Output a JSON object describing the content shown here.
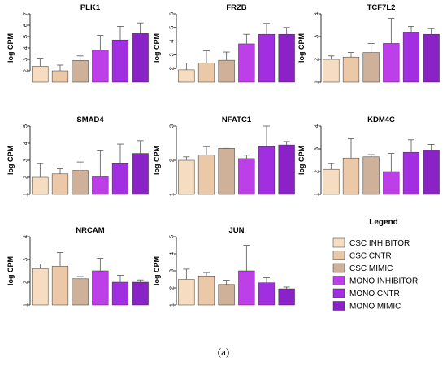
{
  "figure_label": "(a)",
  "legend": {
    "title": "Legend",
    "entries": [
      "CSC INHIBITOR",
      "CSC CNTR",
      "CSC MIMIC",
      "MONO INHIBITOR",
      "MONO CNTR",
      "MONO MIMIC"
    ]
  },
  "colors": {
    "CSC INHIBITOR": "#f6dcc0",
    "CSC CNTR": "#ebc9a8",
    "CSC MIMIC": "#cfb098",
    "MONO INHIBITOR": "#bd3fe8",
    "MONO CNTR": "#a12ee0",
    "MONO MIMIC": "#8a22c8"
  },
  "chart_data": [
    {
      "type": "bar",
      "title": "PLK1",
      "ylabel": "log CPM",
      "categories": [
        "CSC INHIBITOR",
        "CSC CNTR",
        "CSC MIMIC",
        "MONO INHIBITOR",
        "MONO CNTR",
        "MONO MIMIC"
      ],
      "values": [
        2.4,
        2.0,
        2.9,
        3.8,
        4.7,
        5.3
      ],
      "error_upper": [
        3.1,
        2.5,
        3.3,
        5.1,
        5.9,
        6.2
      ],
      "yticks": [
        2,
        3,
        4,
        5,
        6,
        7
      ],
      "ylim": [
        1,
        7
      ]
    },
    {
      "type": "bar",
      "title": "FRZB",
      "ylabel": "log CPM",
      "categories": [
        "CSC INHIBITOR",
        "CSC CNTR",
        "CSC MIMIC",
        "MONO INHIBITOR",
        "MONO CNTR",
        "MONO MIMIC"
      ],
      "values": [
        1.9,
        2.4,
        2.6,
        3.8,
        4.5,
        4.5
      ],
      "error_upper": [
        2.4,
        3.3,
        3.2,
        4.5,
        5.3,
        5.0
      ],
      "yticks": [
        2,
        3,
        4,
        5,
        6
      ],
      "ylim": [
        1,
        6
      ]
    },
    {
      "type": "bar",
      "title": "TCF7L2",
      "ylabel": "log CPM",
      "categories": [
        "CSC INHIBITOR",
        "CSC CNTR",
        "CSC MIMIC",
        "MONO INHIBITOR",
        "MONO CNTR",
        "MONO MIMIC"
      ],
      "values": [
        2.0,
        2.1,
        2.3,
        2.7,
        3.2,
        3.1
      ],
      "error_upper": [
        2.15,
        2.3,
        2.7,
        3.8,
        3.45,
        3.35
      ],
      "yticks": [
        1,
        2,
        3,
        4
      ],
      "ylim": [
        1,
        4
      ]
    },
    {
      "type": "bar",
      "title": "SMAD4",
      "ylabel": "log CPM",
      "categories": [
        "CSC INHIBITOR",
        "CSC CNTR",
        "CSC MIMIC",
        "MONO INHIBITOR",
        "MONO CNTR",
        "MONO MIMIC"
      ],
      "values": [
        2.0,
        2.2,
        2.4,
        2.05,
        2.8,
        3.4
      ],
      "error_upper": [
        2.8,
        2.5,
        2.9,
        3.55,
        3.95,
        4.15
      ],
      "yticks": [
        1,
        2,
        3,
        4,
        5
      ],
      "ylim": [
        1,
        5
      ]
    },
    {
      "type": "bar",
      "title": "NFATC1",
      "ylabel": "log CPM",
      "categories": [
        "CSC INHIBITOR",
        "CSC CNTR",
        "CSC MIMIC",
        "MONO INHIBITOR",
        "MONO CNTR",
        "MONO MIMIC"
      ],
      "values": [
        2.0,
        2.15,
        2.35,
        2.05,
        2.4,
        2.45
      ],
      "error_upper": [
        2.1,
        2.4,
        2.35,
        2.15,
        3.0,
        2.55
      ],
      "yticks": [
        1,
        2,
        3
      ],
      "ylim": [
        1,
        3
      ]
    },
    {
      "type": "bar",
      "title": "KDM4C",
      "ylabel": "log CPM",
      "categories": [
        "CSC INHIBITOR",
        "CSC CNTR",
        "CSC MIMIC",
        "MONO INHIBITOR",
        "MONO CNTR",
        "MONO MIMIC"
      ],
      "values": [
        2.1,
        2.6,
        2.65,
        2.0,
        2.85,
        2.95
      ],
      "error_upper": [
        2.35,
        3.45,
        2.75,
        2.8,
        3.4,
        3.2
      ],
      "yticks": [
        1,
        2,
        3,
        4
      ],
      "ylim": [
        1,
        4
      ]
    },
    {
      "type": "bar",
      "title": "NRCAM",
      "ylabel": "log CPM",
      "categories": [
        "CSC INHIBITOR",
        "CSC CNTR",
        "CSC MIMIC",
        "MONO INHIBITOR",
        "MONO CNTR",
        "MONO MIMIC"
      ],
      "values": [
        2.6,
        2.7,
        2.15,
        2.5,
        2.0,
        2.0
      ],
      "error_upper": [
        2.8,
        3.3,
        2.25,
        3.05,
        2.3,
        2.1
      ],
      "yticks": [
        1,
        2,
        3,
        4
      ],
      "ylim": [
        1,
        4
      ]
    },
    {
      "type": "bar",
      "title": "JUN",
      "ylabel": "log CPM",
      "categories": [
        "CSC INHIBITOR",
        "CSC CNTR",
        "CSC MIMIC",
        "MONO INHIBITOR",
        "MONO CNTR",
        "MONO MIMIC"
      ],
      "values": [
        2.5,
        2.7,
        2.2,
        3.0,
        2.3,
        1.95
      ],
      "error_upper": [
        3.1,
        2.9,
        2.45,
        4.5,
        2.6,
        2.05
      ],
      "yticks": [
        1,
        2,
        3,
        4,
        5
      ],
      "ylim": [
        1,
        5
      ]
    }
  ]
}
